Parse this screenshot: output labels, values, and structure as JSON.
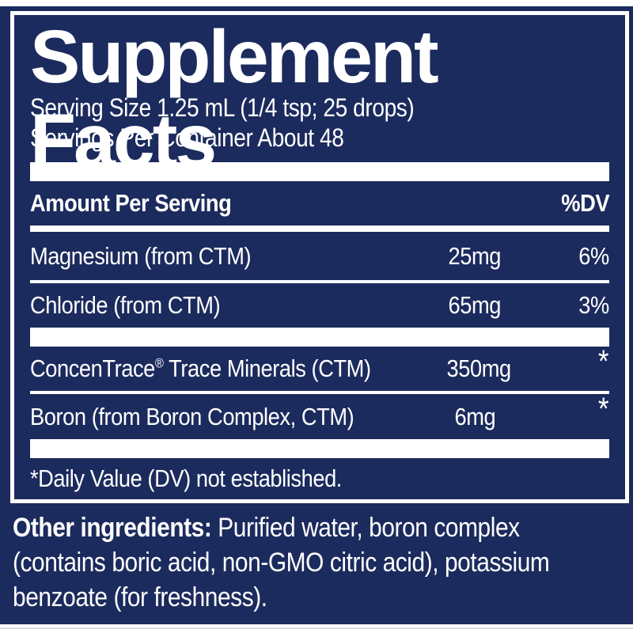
{
  "colors": {
    "navy_background": "#1c2b5d",
    "text_and_rules": "#ffffff"
  },
  "header": {
    "title": "Supplement Facts",
    "serving_size": "Serving Size 1.25 mL (1/4 tsp; 25 drops)",
    "servings_per_container": "Servings Per Container About 48"
  },
  "table": {
    "columns": {
      "amount_header": "Amount Per Serving",
      "dv_header": "%DV"
    },
    "rows": [
      {
        "name": "Magnesium (from CTM)",
        "amount": "25mg",
        "dv": "6%"
      },
      {
        "name": "Chloride (from CTM)",
        "amount": "65mg",
        "dv": "3%"
      },
      {
        "name": "ConcenTrace® Trace Minerals (CTM)",
        "amount": "350mg",
        "dv": "*"
      },
      {
        "name": "Boron (from Boron Complex, CTM)",
        "amount": "6mg",
        "dv": "*"
      }
    ],
    "footnote": "*Daily Value (DV) not established."
  },
  "other_ingredients": {
    "label": "Other ingredients:",
    "line1_rest": " Purified water, boron complex",
    "line2": "(contains boric acid, non-GMO citric acid), potassium",
    "line3": "benzoate (for freshness)."
  }
}
